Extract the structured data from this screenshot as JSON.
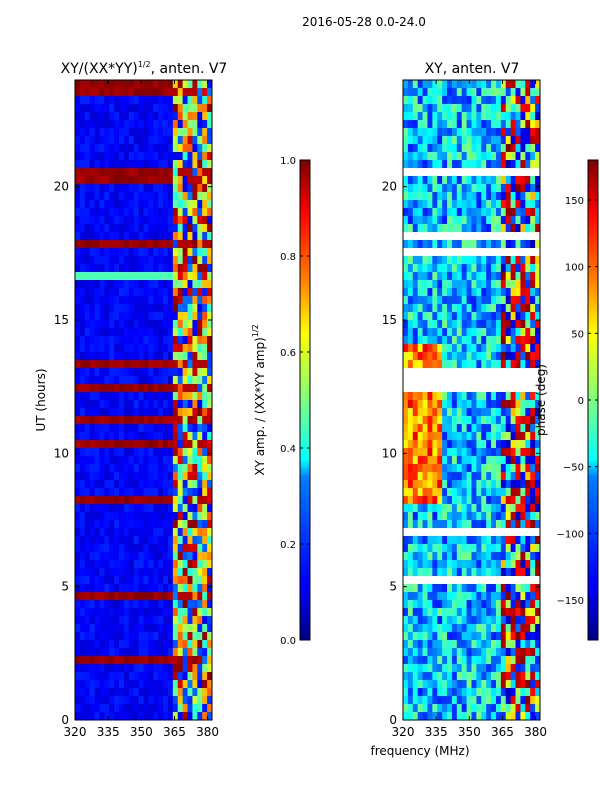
{
  "figure": {
    "suptitle": "2016-05-28 0.0-24.0",
    "shared_xlabel": "frequency (MHz)"
  },
  "chart_data": [
    {
      "type": "heatmap",
      "title_main": "XY/(XX*YY)",
      "title_exp": "1/2",
      "title_rest": ", anten. V7",
      "xlabel": "",
      "ylabel": "UT (hours)",
      "xlim": [
        320,
        382
      ],
      "ylim": [
        0,
        24
      ],
      "xticks": [
        320,
        335,
        350,
        365,
        380
      ],
      "yticks": [
        0,
        5,
        10,
        15,
        20
      ],
      "colorbar": {
        "label_main": "XY amp. / (XX*YY amp)",
        "label_exp": "1/2",
        "min": 0.0,
        "max": 1.0,
        "ticks": [
          "0.0",
          "0.2",
          "0.4",
          "0.6",
          "0.8",
          "1.0"
        ],
        "tick_values": [
          0.0,
          0.2,
          0.4,
          0.6,
          0.8,
          1.0
        ]
      },
      "colormap": "jet"
    },
    {
      "type": "heatmap",
      "title_main": "XY, anten. V7",
      "title_exp": "",
      "title_rest": "",
      "xlabel": "frequency (MHz)",
      "ylabel": "",
      "xlim": [
        320,
        382
      ],
      "ylim": [
        0,
        24
      ],
      "xticks": [
        320,
        335,
        350,
        365,
        380
      ],
      "yticks": [
        0,
        5,
        10,
        15,
        20
      ],
      "colorbar": {
        "label_main": "phase (deg)",
        "label_exp": "",
        "min": -180,
        "max": 180,
        "ticks": [
          "−150",
          "−100",
          "−50",
          "0",
          "50",
          "100",
          "150"
        ],
        "tick_values": [
          -150,
          -100,
          -50,
          0,
          50,
          100,
          150
        ]
      },
      "colormap": "jet"
    }
  ]
}
